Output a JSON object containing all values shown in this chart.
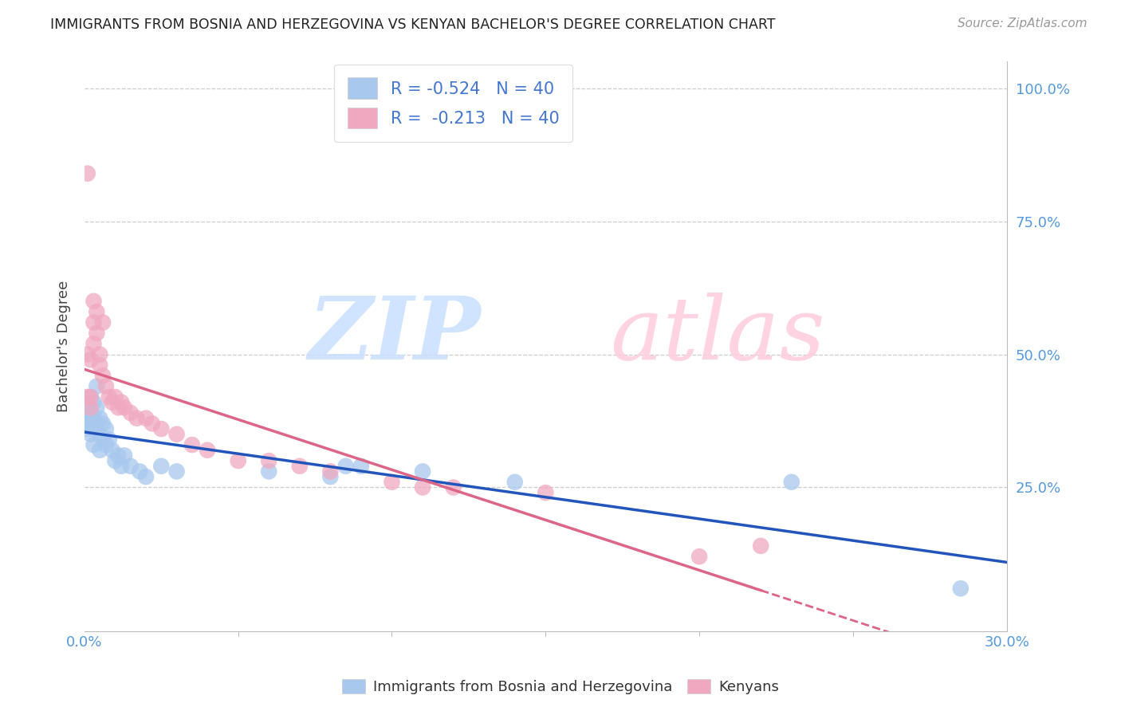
{
  "title": "IMMIGRANTS FROM BOSNIA AND HERZEGOVINA VS KENYAN BACHELOR'S DEGREE CORRELATION CHART",
  "source": "Source: ZipAtlas.com",
  "ylabel": "Bachelor's Degree",
  "legend_blue_r": "R = -0.524",
  "legend_blue_n": "N = 40",
  "legend_pink_r": "R =  -0.213",
  "legend_pink_n": "N = 40",
  "legend_label_blue": "Immigrants from Bosnia and Herzegovina",
  "legend_label_pink": "Kenyans",
  "blue_color": "#A8C8EE",
  "pink_color": "#F0A8C0",
  "blue_line_color": "#2255BB",
  "pink_line_color": "#DD6688",
  "blue_x": [
    0.001,
    0.001,
    0.001,
    0.002,
    0.002,
    0.002,
    0.002,
    0.003,
    0.003,
    0.003,
    0.003,
    0.004,
    0.004,
    0.004,
    0.005,
    0.005,
    0.005,
    0.006,
    0.006,
    0.007,
    0.007,
    0.008,
    0.009,
    0.01,
    0.011,
    0.012,
    0.013,
    0.015,
    0.018,
    0.02,
    0.025,
    0.03,
    0.06,
    0.08,
    0.085,
    0.09,
    0.11,
    0.14,
    0.23,
    0.285
  ],
  "blue_y": [
    0.4,
    0.38,
    0.36,
    0.42,
    0.39,
    0.37,
    0.35,
    0.41,
    0.38,
    0.36,
    0.33,
    0.44,
    0.4,
    0.37,
    0.38,
    0.35,
    0.32,
    0.37,
    0.34,
    0.36,
    0.33,
    0.34,
    0.32,
    0.3,
    0.31,
    0.29,
    0.31,
    0.29,
    0.28,
    0.27,
    0.29,
    0.28,
    0.28,
    0.27,
    0.29,
    0.29,
    0.28,
    0.26,
    0.26,
    0.06
  ],
  "pink_x": [
    0.001,
    0.001,
    0.001,
    0.002,
    0.002,
    0.002,
    0.003,
    0.003,
    0.003,
    0.004,
    0.004,
    0.005,
    0.005,
    0.006,
    0.006,
    0.007,
    0.008,
    0.009,
    0.01,
    0.011,
    0.012,
    0.013,
    0.015,
    0.017,
    0.02,
    0.022,
    0.025,
    0.03,
    0.035,
    0.04,
    0.05,
    0.06,
    0.07,
    0.08,
    0.1,
    0.11,
    0.12,
    0.15,
    0.2,
    0.22
  ],
  "pink_y": [
    0.84,
    0.5,
    0.42,
    0.49,
    0.42,
    0.4,
    0.6,
    0.56,
    0.52,
    0.58,
    0.54,
    0.5,
    0.48,
    0.56,
    0.46,
    0.44,
    0.42,
    0.41,
    0.42,
    0.4,
    0.41,
    0.4,
    0.39,
    0.38,
    0.38,
    0.37,
    0.36,
    0.35,
    0.33,
    0.32,
    0.3,
    0.3,
    0.29,
    0.28,
    0.26,
    0.25,
    0.25,
    0.24,
    0.12,
    0.14
  ],
  "xmin": 0.0,
  "xmax": 0.3,
  "ymin": -0.02,
  "ymax": 1.05
}
